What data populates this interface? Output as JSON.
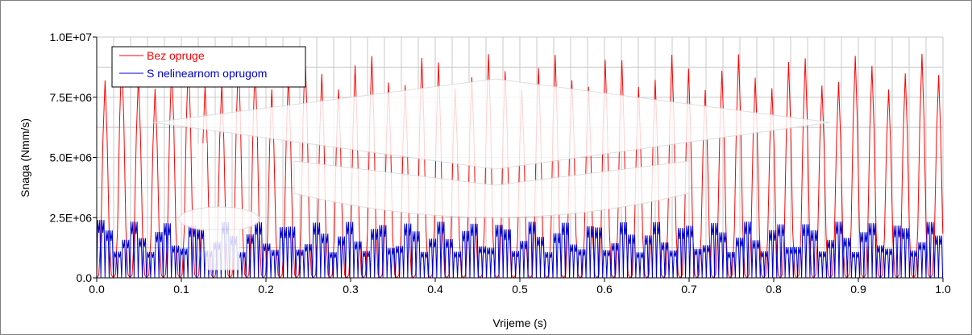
{
  "chart_data": {
    "type": "line",
    "xlabel": "Vrijeme (s)",
    "ylabel": "Snaga (Nmm/s)",
    "xlim": [
      0,
      1.0
    ],
    "ylim": [
      0,
      10000000
    ],
    "x_ticks": [
      0.0,
      0.1,
      0.2,
      0.3,
      0.4,
      0.5,
      0.6,
      0.7,
      0.8,
      0.9,
      1.0
    ],
    "x_tick_labels": [
      "0.0",
      "0.1",
      "0.2",
      "0.3",
      "0.4",
      "0.5",
      "0.6",
      "0.7",
      "0.8",
      "0.9",
      "1.0"
    ],
    "y_ticks": [
      0,
      2500000,
      5000000,
      7500000,
      10000000
    ],
    "y_tick_labels": [
      "0.0",
      "2.5E+06",
      "5.0E+06",
      "7.5E+06",
      "1.0E+07"
    ],
    "grid": true,
    "legend_position": "top-left",
    "series": [
      {
        "name": "Bez opruge",
        "color": "#ff0000",
        "pattern": "periodic",
        "period": 0.0197,
        "amplitude_range": [
          7800000,
          9300000
        ],
        "first_peak": 8200000,
        "baseline": 0
      },
      {
        "name": "S nelinearnom oprugom",
        "color": "#0000cc",
        "pattern": "periodic",
        "period": 0.0098,
        "amplitude_range": [
          1500000,
          3300000
        ],
        "first_peak": 3400000,
        "baseline": 0
      }
    ]
  }
}
